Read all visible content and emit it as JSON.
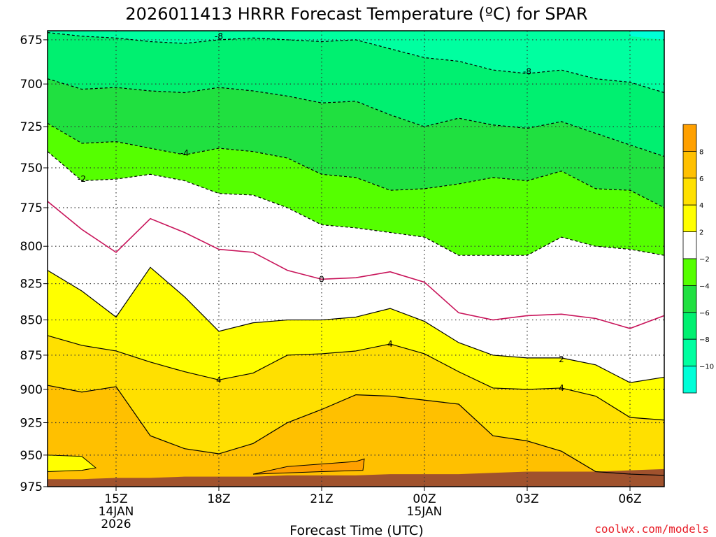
{
  "title": "2026011413 HRRR Forecast Temperature (ºC) for SPAR",
  "credit": "coolwx.com/models",
  "colors": {
    "ground": "#a0522d",
    "credit": "#e8202a",
    "zero_line": "#c8145a",
    "contour": "#000000"
  },
  "chart_data": {
    "type": "contour",
    "title": "2026011413 HRRR Forecast Temperature (ºC) for SPAR",
    "xlabel": "Forecast Time (UTC)",
    "ylabel": "",
    "y_scale": "log-pressure",
    "y_reversed": true,
    "y_ticks": [
      675,
      700,
      725,
      750,
      775,
      800,
      825,
      850,
      875,
      900,
      925,
      950,
      975
    ],
    "xlim": [
      "2026-01-14T13:00Z",
      "2026-01-15T07:00Z"
    ],
    "ylim": [
      975,
      670
    ],
    "grid": true,
    "x_ticks": [
      {
        "time": "2026-01-14T15:00Z",
        "label": "15Z",
        "sub1": "14JAN",
        "sub2": "2026"
      },
      {
        "time": "2026-01-14T18:00Z",
        "label": "18Z",
        "sub1": "",
        "sub2": ""
      },
      {
        "time": "2026-01-14T21:00Z",
        "label": "21Z",
        "sub1": "",
        "sub2": ""
      },
      {
        "time": "2026-01-15T00:00Z",
        "label": "00Z",
        "sub1": "15JAN",
        "sub2": ""
      },
      {
        "time": "2026-01-15T03:00Z",
        "label": "03Z",
        "sub1": "",
        "sub2": ""
      },
      {
        "time": "2026-01-15T06:00Z",
        "label": "06Z",
        "sub1": "",
        "sub2": ""
      }
    ],
    "time_axis": [
      "2026-01-14T13:00Z",
      "2026-01-14T14:00Z",
      "2026-01-14T15:00Z",
      "2026-01-14T16:00Z",
      "2026-01-14T17:00Z",
      "2026-01-14T18:00Z",
      "2026-01-14T19:00Z",
      "2026-01-14T20:00Z",
      "2026-01-14T21:00Z",
      "2026-01-14T22:00Z",
      "2026-01-14T23:00Z",
      "2026-01-15T00:00Z",
      "2026-01-15T01:00Z",
      "2026-01-15T02:00Z",
      "2026-01-15T03:00Z",
      "2026-01-15T04:00Z",
      "2026-01-15T05:00Z",
      "2026-01-15T06:00Z",
      "2026-01-15T07:00Z"
    ],
    "contours": [
      {
        "value": -8,
        "style": "dashed",
        "label": "-8",
        "pressure": [
          671,
          673,
          674,
          676,
          677,
          675,
          674,
          675,
          676,
          675,
          680,
          685,
          687,
          692,
          694,
          692,
          697,
          699,
          705
        ],
        "label_points": [
          {
            "time": "2026-01-14T18:00Z",
            "pressure": 673
          },
          {
            "time": "2026-01-15T03:00Z",
            "pressure": 693
          }
        ]
      },
      {
        "value": -6,
        "style": "dashed",
        "label": "",
        "pressure": [
          697,
          703,
          702,
          704,
          705,
          702,
          704,
          707,
          711,
          710,
          718,
          725,
          720,
          724,
          726,
          722,
          729,
          736,
          743
        ],
        "label_points": []
      },
      {
        "value": -4,
        "style": "dashed",
        "label": "-4",
        "pressure": [
          723,
          735,
          734,
          738,
          742,
          738,
          740,
          744,
          754,
          756,
          764,
          763,
          760,
          756,
          758,
          752,
          763,
          764,
          775
        ],
        "label_points": [
          {
            "time": "2026-01-14T17:00Z",
            "pressure": 741
          }
        ]
      },
      {
        "value": -2,
        "style": "dashed",
        "label": "-2",
        "pressure": [
          740,
          758,
          757,
          754,
          758,
          766,
          767,
          775,
          786,
          788,
          791,
          794,
          806,
          806,
          806,
          794,
          800,
          802,
          806
        ],
        "label_points": [
          {
            "time": "2026-01-14T14:00Z",
            "pressure": 757
          }
        ]
      },
      {
        "value": 0,
        "style": "zero",
        "label": "0",
        "pressure": [
          771,
          789,
          804,
          782,
          791,
          802,
          804,
          816,
          822,
          821,
          817,
          824,
          845,
          850,
          847,
          846,
          849,
          856,
          847
        ],
        "label_points": [
          {
            "time": "2026-01-14T21:00Z",
            "pressure": 822
          }
        ]
      },
      {
        "value": 2,
        "style": "solid",
        "label": "2",
        "pressure": [
          816,
          830,
          848,
          814,
          834,
          858,
          852,
          850,
          850,
          848,
          842,
          851,
          866,
          875,
          877,
          877,
          882,
          895,
          891
        ],
        "label_points": [
          {
            "time": "2026-01-15T04:00Z",
            "pressure": 878
          }
        ]
      },
      {
        "value": 4,
        "style": "solid",
        "label": "4",
        "pressure": [
          861,
          868,
          872,
          880,
          887,
          893,
          888,
          875,
          874,
          872,
          867,
          874,
          887,
          899,
          900,
          899,
          905,
          921,
          923
        ],
        "label_points": [
          {
            "time": "2026-01-14T18:00Z",
            "pressure": 893
          },
          {
            "time": "2026-01-14T23:00Z",
            "pressure": 867
          },
          {
            "time": "2026-01-15T04:00Z",
            "pressure": 899
          }
        ]
      },
      {
        "value": 6,
        "style": "solid",
        "label": "",
        "pressure": [
          897,
          902,
          898,
          935,
          945,
          949,
          941,
          925,
          915,
          904,
          905,
          908,
          911,
          935,
          939,
          947,
          963,
          965,
          966
        ],
        "label_points": []
      }
    ],
    "fill_bands": [
      {
        "range": "< -10",
        "color": "#00ffd8"
      },
      {
        "range": "-10 to -8",
        "color": "#00ffa0"
      },
      {
        "range": "-8 to -6",
        "color": "#00f070"
      },
      {
        "range": "-6 to -4",
        "color": "#20e040"
      },
      {
        "range": "-4 to -2",
        "color": "#55ff00"
      },
      {
        "range": "-2 to 2",
        "color": "#ffffff"
      },
      {
        "range": "2 to 4",
        "color": "#ffff00"
      },
      {
        "range": "4 to 6",
        "color": "#ffe000"
      },
      {
        "range": "6 to 8",
        "color": "#ffc000"
      },
      {
        "range": "> 8",
        "color": "#ffa000"
      }
    ],
    "colorbar": {
      "tick_labels": [
        "8",
        "6",
        "4",
        "2",
        "−2",
        "−4",
        "−6",
        "−8",
        "−10"
      ]
    },
    "ground_surface_pressure": [
      969,
      969,
      968,
      968,
      967,
      967,
      967,
      966,
      966,
      966,
      965,
      965,
      965,
      964,
      963,
      963,
      963,
      962,
      961
    ]
  }
}
